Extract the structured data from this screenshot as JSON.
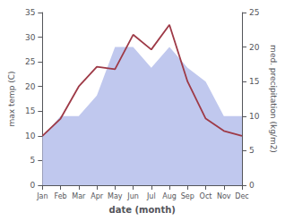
{
  "chart_data": {
    "type": "line",
    "categories": [
      "Jan",
      "Feb",
      "Mar",
      "Apr",
      "May",
      "Jun",
      "Jul",
      "Aug",
      "Sep",
      "Oct",
      "Nov",
      "Dec"
    ],
    "xlabel": "date (month)",
    "ylabel": "max temp (C)",
    "y2label": "med. precipitation (kg/m2)",
    "series": [
      {
        "type": "area",
        "color": "#c0c8ee",
        "axis": "y2",
        "values": [
          7,
          10,
          10,
          13,
          20,
          20,
          17,
          20,
          17,
          15,
          10,
          10
        ]
      },
      {
        "type": "line",
        "color": "#9e3a47",
        "values": [
          10,
          13.5,
          20,
          24,
          23.5,
          30.5,
          27.5,
          32.5,
          21,
          13.5,
          11,
          10
        ]
      }
    ],
    "ylim": [
      0,
      35
    ],
    "yticks": [
      0,
      5,
      10,
      15,
      20,
      25,
      30,
      35
    ],
    "y2lim": [
      0,
      25
    ],
    "y2ticks": [
      0,
      5,
      10,
      15,
      20,
      25
    ],
    "grid": false
  }
}
